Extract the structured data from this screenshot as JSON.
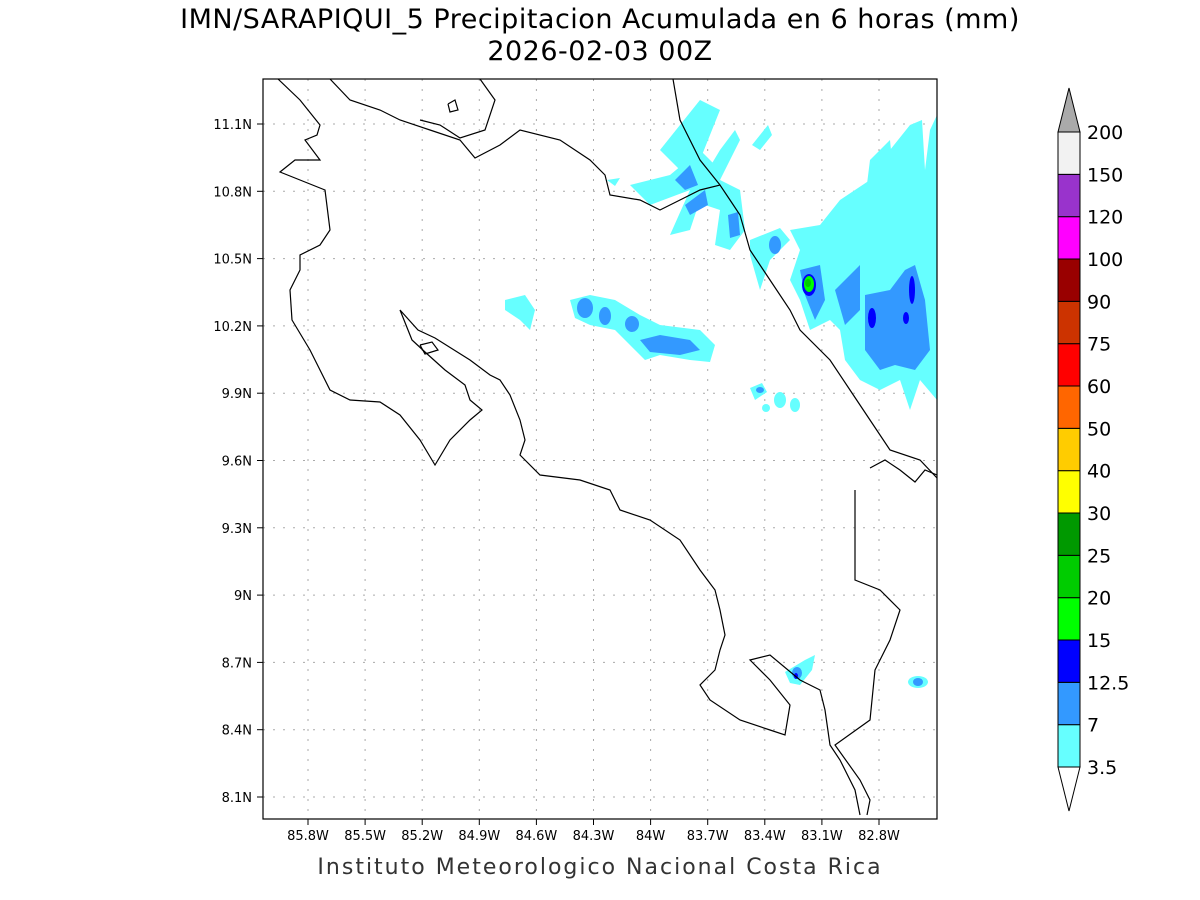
{
  "title": {
    "line1": "IMN/SARAPIQUI_5 Precipitacion Acumulada en 6 horas (mm)",
    "line2": "2026-02-03 00Z"
  },
  "footer": "Instituto Meteorologico Nacional Costa Rica",
  "map": {
    "lon_labels": [
      "85.8W",
      "85.5W",
      "85.2W",
      "84.9W",
      "84.6W",
      "84.3W",
      "84W",
      "83.7W",
      "83.4W",
      "83.1W",
      "82.8W"
    ],
    "lat_labels": [
      "11.1N",
      "10.8N",
      "10.5N",
      "10.2N",
      "9.9N",
      "9.6N",
      "9.3N",
      "9N",
      "8.7N",
      "8.4N",
      "8.1N"
    ]
  },
  "colorbar": {
    "levels": [
      "3.5",
      "7",
      "12.5",
      "15",
      "20",
      "25",
      "30",
      "40",
      "50",
      "60",
      "75",
      "90",
      "100",
      "120",
      "150",
      "200"
    ],
    "colors": [
      "#66ffff",
      "#3399ff",
      "#0000ff",
      "#00ff00",
      "#00cc00",
      "#009900",
      "#ffff00",
      "#ffcc00",
      "#ff6600",
      "#ff0000",
      "#cc3300",
      "#990000",
      "#ff00ff",
      "#9933cc",
      "#f2f2f2"
    ],
    "over_color": "#aaaaaa",
    "under_color": "#ffffff"
  }
}
